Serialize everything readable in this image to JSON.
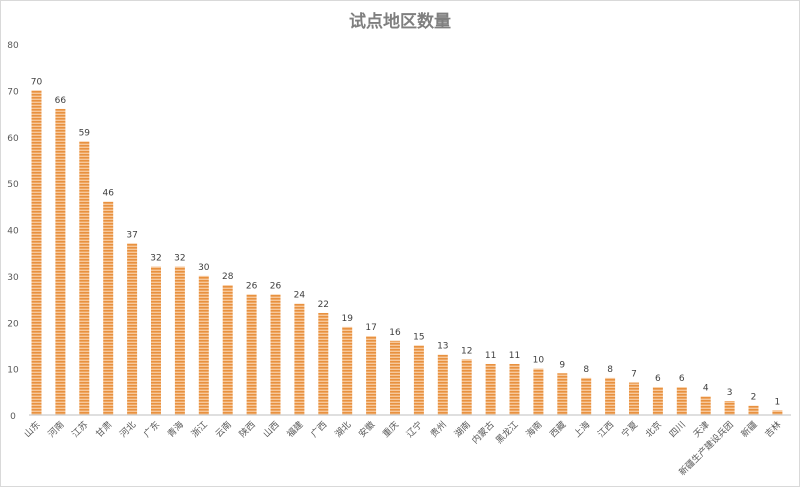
{
  "chart_data": {
    "type": "bar",
    "title": "试点地区数量",
    "xlabel": "",
    "ylabel": "",
    "ylim": [
      0,
      80
    ],
    "yticks": [
      0,
      10,
      20,
      30,
      40,
      50,
      60,
      70,
      80
    ],
    "grid": false,
    "data_labels": true,
    "bar_color": "#ED9E57",
    "bar_pattern": "horizontal-stripes",
    "categories": [
      "山东",
      "河南",
      "江苏",
      "甘肃",
      "河北",
      "广东",
      "青海",
      "浙江",
      "云南",
      "陕西",
      "山西",
      "福建",
      "广西",
      "湖北",
      "安徽",
      "重庆",
      "辽宁",
      "贵州",
      "湖南",
      "内蒙古",
      "黑龙江",
      "海南",
      "西藏",
      "上海",
      "江西",
      "宁夏",
      "北京",
      "四川",
      "天津",
      "新疆生产建设兵团",
      "新疆",
      "吉林"
    ],
    "values": [
      70,
      66,
      59,
      46,
      37,
      32,
      32,
      30,
      28,
      26,
      26,
      24,
      22,
      19,
      17,
      16,
      15,
      13,
      12,
      11,
      11,
      10,
      9,
      8,
      8,
      7,
      6,
      6,
      4,
      3,
      2,
      1
    ]
  }
}
